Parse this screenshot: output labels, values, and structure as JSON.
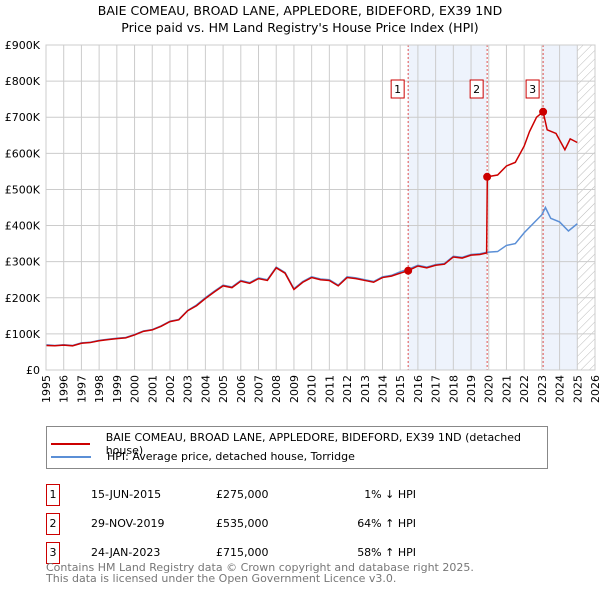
{
  "title": "BAIE COMEAU, BROAD LANE, APPLEDORE, BIDEFORD, EX39 1ND",
  "subtitle": "Price paid vs. HM Land Registry's House Price Index (HPI)",
  "chart_data": {
    "type": "line",
    "title": "BAIE COMEAU, BROAD LANE, APPLEDORE, BIDEFORD, EX39 1ND",
    "subtitle": "Price paid vs. HM Land Registry's House Price Index (HPI)",
    "xlim": [
      1995,
      2026
    ],
    "ylim": [
      0,
      900000
    ],
    "x_ticks": [
      "1995",
      "1996",
      "1997",
      "1998",
      "1999",
      "2000",
      "2001",
      "2002",
      "2003",
      "2004",
      "2005",
      "2006",
      "2007",
      "2008",
      "2009",
      "2010",
      "2011",
      "2012",
      "2013",
      "2014",
      "2015",
      "2016",
      "2017",
      "2018",
      "2019",
      "2020",
      "2021",
      "2022",
      "2023",
      "2024",
      "2025",
      "2026"
    ],
    "y_ticks": [
      {
        "v": 0,
        "l": "£0"
      },
      {
        "v": 100000,
        "l": "£100K"
      },
      {
        "v": 200000,
        "l": "£200K"
      },
      {
        "v": 300000,
        "l": "£300K"
      },
      {
        "v": 400000,
        "l": "£400K"
      },
      {
        "v": 500000,
        "l": "£500K"
      },
      {
        "v": 600000,
        "l": "£600K"
      },
      {
        "v": 700000,
        "l": "£700K"
      },
      {
        "v": 800000,
        "l": "£800K"
      },
      {
        "v": 900000,
        "l": "£900K"
      }
    ],
    "grid": true,
    "series": [
      {
        "name": "BAIE COMEAU, BROAD LANE, APPLEDORE, BIDEFORD, EX39 1ND (detached house)",
        "color": "#cc0000",
        "x": [
          1995,
          1995.5,
          1996,
          1996.5,
          1997,
          1997.5,
          1998,
          1998.5,
          1999,
          1999.5,
          2000,
          2000.5,
          2001,
          2001.5,
          2002,
          2002.5,
          2003,
          2003.5,
          2004,
          2004.5,
          2005,
          2005.5,
          2006,
          2006.5,
          2007,
          2007.5,
          2008,
          2008.5,
          2009,
          2009.5,
          2010,
          2010.5,
          2011,
          2011.5,
          2012,
          2012.5,
          2013,
          2013.5,
          2014,
          2014.5,
          2015,
          2015.45,
          2016,
          2016.5,
          2017,
          2017.5,
          2018,
          2018.5,
          2019,
          2019.5,
          2019.88,
          2019.92,
          2020.5,
          2021,
          2021.5,
          2022,
          2022.3,
          2022.7,
          2023.07,
          2023.3,
          2023.8,
          2024.3,
          2024.6,
          2025
        ],
        "y": [
          68000,
          67000,
          69000,
          67000,
          74000,
          76000,
          81000,
          84000,
          87000,
          89000,
          97000,
          107000,
          111000,
          121000,
          134000,
          139000,
          164000,
          178000,
          198000,
          216000,
          233000,
          228000,
          246000,
          240000,
          253000,
          248000,
          283000,
          268000,
          223000,
          243000,
          256000,
          250000,
          248000,
          233000,
          256000,
          253000,
          248000,
          243000,
          256000,
          260000,
          268000,
          275000,
          288000,
          283000,
          290000,
          293000,
          313000,
          310000,
          318000,
          320000,
          324000,
          535000,
          540000,
          565000,
          575000,
          620000,
          660000,
          700000,
          715000,
          665000,
          655000,
          610000,
          640000,
          630000
        ]
      },
      {
        "name": "HPI: Average price, detached house, Torridge",
        "color": "#5b8fd6",
        "x": [
          1995,
          1995.5,
          1996,
          1996.5,
          1997,
          1997.5,
          1998,
          1998.5,
          1999,
          1999.5,
          2000,
          2000.5,
          2001,
          2001.5,
          2002,
          2002.5,
          2003,
          2003.5,
          2004,
          2004.5,
          2005,
          2005.5,
          2006,
          2006.5,
          2007,
          2007.5,
          2008,
          2008.5,
          2009,
          2009.5,
          2010,
          2010.5,
          2011,
          2011.5,
          2012,
          2012.5,
          2013,
          2013.5,
          2014,
          2014.5,
          2015,
          2015.5,
          2016,
          2016.5,
          2017,
          2017.5,
          2018,
          2018.5,
          2019,
          2019.5,
          2019.9,
          2020.5,
          2021,
          2021.5,
          2022,
          2022.5,
          2023,
          2023.2,
          2023.5,
          2024,
          2024.5,
          2025
        ],
        "y": [
          70000,
          68000,
          70000,
          68000,
          75000,
          77000,
          82000,
          85000,
          88000,
          90000,
          98000,
          108000,
          112000,
          122000,
          135000,
          140000,
          165000,
          180000,
          200000,
          218000,
          235000,
          230000,
          248000,
          242000,
          255000,
          250000,
          285000,
          270000,
          225000,
          245000,
          258000,
          252000,
          250000,
          235000,
          258000,
          255000,
          250000,
          245000,
          258000,
          262000,
          272000,
          280000,
          290000,
          285000,
          292000,
          295000,
          315000,
          312000,
          320000,
          322000,
          326000,
          328000,
          345000,
          350000,
          380000,
          405000,
          430000,
          450000,
          420000,
          410000,
          385000,
          405000
        ]
      }
    ],
    "sales": [
      {
        "n": "1",
        "date": "15-JUN-2015",
        "x": 2015.45,
        "price": "£275,000",
        "value": 275000,
        "hpi": "1% ↓ HPI"
      },
      {
        "n": "2",
        "date": "29-NOV-2019",
        "x": 2019.91,
        "price": "£535,000",
        "value": 535000,
        "hpi": "64% ↑ HPI"
      },
      {
        "n": "3",
        "date": "24-JAN-2023",
        "x": 2023.07,
        "price": "£715,000",
        "value": 715000,
        "hpi": "58% ↑ HPI"
      }
    ],
    "legend_placement": "bottom"
  },
  "footer": [
    "Contains HM Land Registry data © Crown copyright and database right 2025.",
    "This data is licensed under the Open Government Licence v3.0."
  ]
}
